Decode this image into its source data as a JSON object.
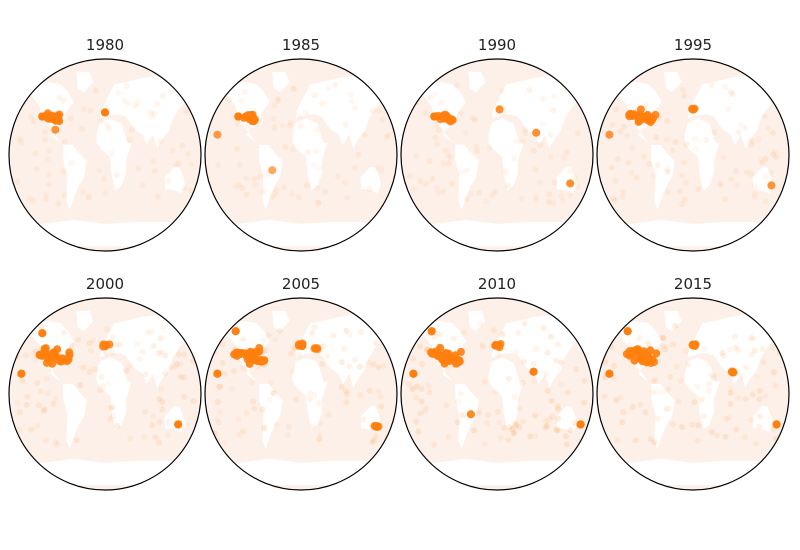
{
  "colors": {
    "ocean": "#fdf0e8",
    "land": "#ffffff",
    "marker": "#ff7f0e",
    "outline": "#000000",
    "title": "#222222"
  },
  "panels": [
    {
      "year": "1980",
      "intensity": 0.3,
      "hotspots": [
        {
          "lon": -100,
          "lat": 38,
          "r": 9,
          "a": 0.85
        },
        {
          "lon": -120,
          "lat": 38,
          "r": 4,
          "a": 0.75
        },
        {
          "lon": -90,
          "lat": 35,
          "r": 6,
          "a": 0.8
        },
        {
          "lon": 0,
          "lat": 42,
          "r": 4,
          "a": 0.75
        },
        {
          "lon": -95,
          "lat": 25,
          "r": 3,
          "a": 0.35
        }
      ]
    },
    {
      "year": "1985",
      "intensity": 0.3,
      "hotspots": [
        {
          "lon": -100,
          "lat": 38,
          "r": 9,
          "a": 0.85
        },
        {
          "lon": -120,
          "lat": 38,
          "r": 4,
          "a": 0.75
        },
        {
          "lon": -90,
          "lat": 35,
          "r": 6,
          "a": 0.8
        },
        {
          "lon": -160,
          "lat": 20,
          "r": 3,
          "a": 0.3
        },
        {
          "lon": -55,
          "lat": -15,
          "r": 3,
          "a": 0.25
        }
      ]
    },
    {
      "year": "1990",
      "intensity": 0.35,
      "hotspots": [
        {
          "lon": -100,
          "lat": 38,
          "r": 9,
          "a": 0.85
        },
        {
          "lon": -120,
          "lat": 38,
          "r": 4,
          "a": 0.75
        },
        {
          "lon": -90,
          "lat": 35,
          "r": 6,
          "a": 0.8
        },
        {
          "lon": 5,
          "lat": 45,
          "r": 3,
          "a": 0.4
        },
        {
          "lon": 75,
          "lat": 22,
          "r": 3,
          "a": 0.4
        },
        {
          "lon": 140,
          "lat": -28,
          "r": 3,
          "a": 0.4
        }
      ]
    },
    {
      "year": "1995",
      "intensity": 0.45,
      "hotspots": [
        {
          "lon": -98,
          "lat": 38,
          "r": 14,
          "a": 0.9
        },
        {
          "lon": -118,
          "lat": 40,
          "r": 6,
          "a": 0.85
        },
        {
          "lon": -82,
          "lat": 35,
          "r": 7,
          "a": 0.85
        },
        {
          "lon": 0,
          "lat": 45,
          "r": 5,
          "a": 0.8
        },
        {
          "lon": -160,
          "lat": 20,
          "r": 3,
          "a": 0.35
        },
        {
          "lon": 150,
          "lat": -30,
          "r": 3,
          "a": 0.35
        }
      ]
    },
    {
      "year": "2000",
      "intensity": 0.65,
      "hotspots": [
        {
          "lon": -98,
          "lat": 38,
          "r": 16,
          "a": 0.92
        },
        {
          "lon": -118,
          "lat": 40,
          "r": 7,
          "a": 0.88
        },
        {
          "lon": -80,
          "lat": 33,
          "r": 8,
          "a": 0.88
        },
        {
          "lon": 2,
          "lat": 48,
          "r": 6,
          "a": 0.85
        },
        {
          "lon": -120,
          "lat": 60,
          "r": 4,
          "a": 0.55
        },
        {
          "lon": -160,
          "lat": 20,
          "r": 4,
          "a": 0.6
        },
        {
          "lon": 140,
          "lat": -30,
          "r": 4,
          "a": 0.65
        },
        {
          "lon": 175,
          "lat": -40,
          "r": 4,
          "a": 0.7
        }
      ]
    },
    {
      "year": "2005",
      "intensity": 0.75,
      "hotspots": [
        {
          "lon": -98,
          "lat": 38,
          "r": 16,
          "a": 0.92
        },
        {
          "lon": -118,
          "lat": 40,
          "r": 7,
          "a": 0.88
        },
        {
          "lon": -80,
          "lat": 33,
          "r": 8,
          "a": 0.88
        },
        {
          "lon": 2,
          "lat": 48,
          "r": 6,
          "a": 0.85
        },
        {
          "lon": 30,
          "lat": 45,
          "r": 5,
          "a": 0.6
        },
        {
          "lon": -125,
          "lat": 62,
          "r": 4,
          "a": 0.55
        },
        {
          "lon": -160,
          "lat": 20,
          "r": 4,
          "a": 0.65
        },
        {
          "lon": 145,
          "lat": -32,
          "r": 5,
          "a": 0.75
        },
        {
          "lon": 175,
          "lat": -40,
          "r": 4,
          "a": 0.75
        }
      ]
    },
    {
      "year": "2010",
      "intensity": 0.8,
      "hotspots": [
        {
          "lon": -98,
          "lat": 38,
          "r": 16,
          "a": 0.92
        },
        {
          "lon": -118,
          "lat": 40,
          "r": 7,
          "a": 0.88
        },
        {
          "lon": -80,
          "lat": 33,
          "r": 8,
          "a": 0.88
        },
        {
          "lon": 2,
          "lat": 48,
          "r": 6,
          "a": 0.88
        },
        {
          "lon": 70,
          "lat": 22,
          "r": 4,
          "a": 0.55
        },
        {
          "lon": -125,
          "lat": 62,
          "r": 4,
          "a": 0.55
        },
        {
          "lon": -160,
          "lat": 20,
          "r": 4,
          "a": 0.7
        },
        {
          "lon": -50,
          "lat": -20,
          "r": 3,
          "a": 0.45
        },
        {
          "lon": 160,
          "lat": -30,
          "r": 4,
          "a": 0.6
        }
      ]
    },
    {
      "year": "2015",
      "intensity": 0.8,
      "hotspots": [
        {
          "lon": -98,
          "lat": 38,
          "r": 15,
          "a": 0.92
        },
        {
          "lon": -118,
          "lat": 42,
          "r": 6,
          "a": 0.88
        },
        {
          "lon": -80,
          "lat": 33,
          "r": 7,
          "a": 0.88
        },
        {
          "lon": 2,
          "lat": 48,
          "r": 5,
          "a": 0.88
        },
        {
          "lon": 75,
          "lat": 22,
          "r": 5,
          "a": 0.65
        },
        {
          "lon": -125,
          "lat": 62,
          "r": 4,
          "a": 0.7
        },
        {
          "lon": -160,
          "lat": 20,
          "r": 4,
          "a": 0.75
        },
        {
          "lon": 160,
          "lat": -30,
          "r": 4,
          "a": 0.7
        },
        {
          "lon": 175,
          "lat": -40,
          "r": 4,
          "a": 0.65
        }
      ]
    }
  ]
}
